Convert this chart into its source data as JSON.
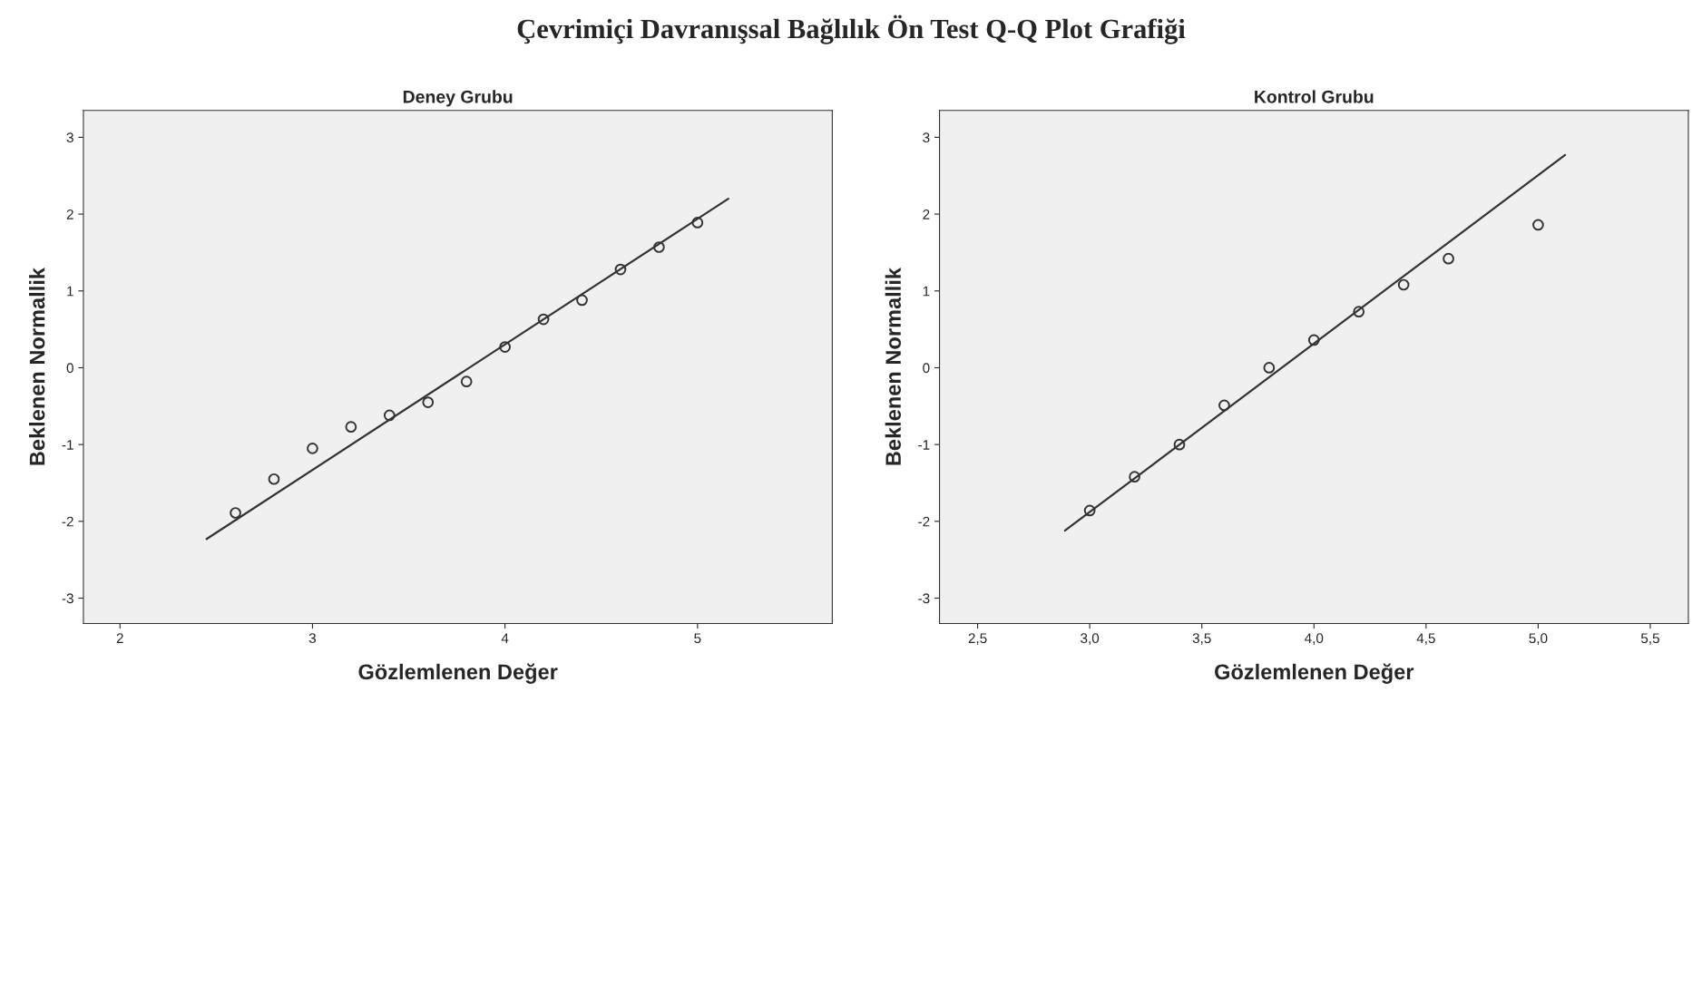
{
  "chart_data": [
    {
      "type": "scatter",
      "title": "Deney Grubu",
      "xlabel": "Gözlemlenen Değer",
      "ylabel": "Beklenen Normallik",
      "annotations": [
        "Çevrimiçi Davranışsal Bağlılık Ön Test Q-Q Plot Grafiği"
      ],
      "series": [
        {
          "marker": "circle",
          "color": "#333333",
          "x": [
            2.6,
            2.8,
            3.0,
            3.2,
            3.4,
            3.6,
            3.8,
            4.0,
            4.2,
            4.4,
            4.6,
            4.8,
            5.0
          ],
          "values": [
            -1.89,
            -1.45,
            -1.05,
            -0.77,
            -0.62,
            -0.45,
            -0.18,
            0.27,
            0.63,
            0.88,
            1.28,
            1.57,
            1.89
          ]
        },
        {
          "type": "line",
          "marker": "none",
          "color": "#333333",
          "x": [
            2.45,
            5.16
          ],
          "values": [
            -2.23,
            2.2
          ]
        }
      ],
      "grid": false,
      "xlim": [
        1.81,
        5.7
      ],
      "xticks": [
        2,
        3,
        4,
        5
      ],
      "ylim": [
        -3.33,
        3.35
      ],
      "yticks": [
        -3,
        -2,
        -1,
        0,
        1,
        2,
        3
      ]
    },
    {
      "type": "scatter",
      "title": "Kontrol Grubu",
      "xlabel": "Gözlemlenen Değer",
      "ylabel": "Beklenen Normallik",
      "series": [
        {
          "marker": "circle",
          "color": "#333333",
          "x": [
            3.0,
            3.2,
            3.4,
            3.6,
            3.8,
            4.0,
            4.2,
            4.4,
            4.6,
            5.0
          ],
          "values": [
            -1.86,
            -1.42,
            -1.0,
            -0.49,
            0.0,
            0.36,
            0.73,
            1.08,
            1.42,
            1.86
          ]
        },
        {
          "type": "line",
          "marker": "none",
          "color": "#333333",
          "x": [
            2.89,
            5.12
          ],
          "values": [
            -2.12,
            2.77
          ]
        }
      ],
      "grid": false,
      "xlim": [
        2.33,
        5.67
      ],
      "xticks": [
        {
          "value": 2.5,
          "label": "2,5"
        },
        {
          "value": 3.0,
          "label": "3,0"
        },
        {
          "value": 3.5,
          "label": "3,5"
        },
        {
          "value": 4.0,
          "label": "4,0"
        },
        {
          "value": 4.5,
          "label": "4,5"
        },
        {
          "value": 5.0,
          "label": "5,0"
        },
        {
          "value": 5.5,
          "label": "5,5"
        }
      ],
      "ylim": [
        -3.33,
        3.35
      ],
      "yticks": [
        -3,
        -2,
        -1,
        0,
        1,
        2,
        3
      ]
    }
  ]
}
